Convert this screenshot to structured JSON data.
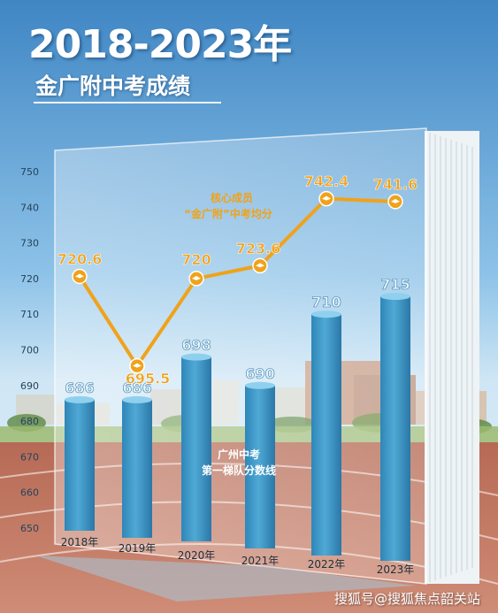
{
  "title": "2018-2023年",
  "subtitle": "金广附中考成绩",
  "watermark": "搜狐号@搜狐焦点韶关站",
  "chart_data": {
    "type": "bar+line",
    "categories": [
      "2018年",
      "2019年",
      "2020年",
      "2021年",
      "2022年",
      "2023年"
    ],
    "ylim": [
      645,
      755
    ],
    "yticks": [
      650,
      660,
      670,
      680,
      690,
      700,
      710,
      720,
      730,
      740,
      750
    ],
    "grid": false,
    "series": [
      {
        "name": "广州中考第一梯队分数线",
        "type": "bar",
        "values": [
          686,
          686,
          698,
          690,
          710,
          715
        ],
        "labels": [
          "686",
          "686",
          "698",
          "690",
          "710",
          "715"
        ]
      },
      {
        "name": "核心成员“金广附”中考均分",
        "type": "line",
        "values": [
          720.6,
          695.5,
          720,
          723.6,
          742.4,
          741.6
        ],
        "labels": [
          "720.6",
          "695.5",
          "720",
          "723.6",
          "742.4",
          "741.6"
        ]
      }
    ],
    "line_legend": [
      "核心成员",
      "“金广附”中考均分"
    ],
    "bar_legend": [
      "广州中考",
      "第一梯队分数线"
    ],
    "colors": {
      "bar": "#4fa9d4",
      "line": "#f0a21a",
      "line_label": "#f0a21a",
      "bar_label": "#e8f4fb",
      "ytick": "#24435c"
    }
  }
}
